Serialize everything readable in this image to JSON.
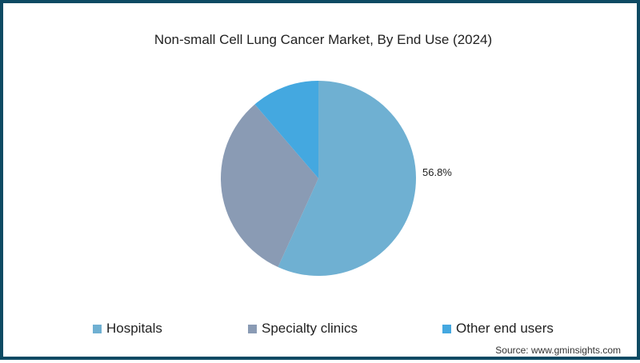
{
  "chart_data": {
    "type": "pie",
    "title": "Non-small Cell Lung Cancer Market, By End Use (2024)",
    "categories": [
      "Hospitals",
      "Specialty clinics",
      "Other end users"
    ],
    "values": [
      56.8,
      31.9,
      11.3
    ],
    "colors": [
      "#6fb0d2",
      "#8a9bb4",
      "#44a8e0"
    ],
    "data_labels": {
      "Hospitals": "56.8%"
    },
    "legend_position": "bottom"
  },
  "source": "Source: www.gminsights.com"
}
